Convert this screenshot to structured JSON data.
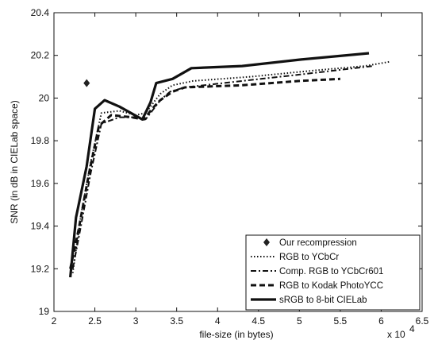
{
  "chart_data": {
    "type": "line",
    "title": "",
    "xlabel": "file-size (in bytes)",
    "ylabel": "SNR (in dB in CIELab space)",
    "x_multiplier_label": "x 10",
    "x_multiplier_exponent": "4",
    "xlim": [
      2,
      6.5
    ],
    "ylim": [
      19,
      20.4
    ],
    "xticks": [
      2,
      2.5,
      3,
      3.5,
      4,
      4.5,
      5,
      5.5,
      6,
      6.5
    ],
    "xtick_labels": [
      "2",
      "2.5",
      "3",
      "3.5",
      "4",
      "4.5",
      "5",
      "5.5",
      "6",
      "6.5"
    ],
    "yticks": [
      19,
      19.2,
      19.4,
      19.6,
      19.8,
      20,
      20.2,
      20.4
    ],
    "ytick_labels": [
      "19",
      "19.2",
      "19.4",
      "19.6",
      "19.8",
      "20",
      "20.2",
      "20.4"
    ],
    "grid": false,
    "legend_position": "bottom-right",
    "series": [
      {
        "name": "Our recompression",
        "style": "diamond-marker",
        "x": [
          2.4
        ],
        "y": [
          20.07
        ]
      },
      {
        "name": "RGB to YCbCr",
        "style": "dotted",
        "x": [
          2.23,
          2.33,
          2.45,
          2.58,
          2.8,
          3.0,
          3.12,
          3.2,
          3.3,
          3.45,
          3.7,
          4.4,
          5.2,
          5.8,
          6.1
        ],
        "y": [
          19.18,
          19.45,
          19.7,
          19.93,
          19.94,
          19.92,
          19.93,
          19.97,
          20.02,
          20.06,
          20.08,
          20.1,
          20.13,
          20.15,
          20.17
        ]
      },
      {
        "name": "Comp. RGB to YCbCr601",
        "style": "dash-dot",
        "x": [
          2.23,
          2.33,
          2.45,
          2.58,
          2.8,
          3.0,
          3.12,
          3.22,
          3.3,
          3.42,
          3.6,
          4.3,
          5.0,
          5.9
        ],
        "y": [
          19.2,
          19.4,
          19.65,
          19.88,
          19.91,
          19.91,
          19.9,
          19.95,
          19.99,
          20.03,
          20.05,
          20.08,
          20.11,
          20.15
        ]
      },
      {
        "name": "RGB to Kodak PhotoYCC",
        "style": "dashed",
        "x": [
          2.2,
          2.3,
          2.42,
          2.55,
          2.7,
          2.95,
          3.1,
          3.2,
          3.3,
          3.45,
          3.6,
          4.3,
          5.0,
          5.5
        ],
        "y": [
          19.2,
          19.38,
          19.63,
          19.87,
          19.92,
          19.91,
          19.9,
          19.95,
          19.99,
          20.03,
          20.05,
          20.06,
          20.08,
          20.09
        ]
      },
      {
        "name": "sRGB to 8-bit CIELab",
        "style": "solid-thick",
        "x": [
          2.2,
          2.27,
          2.4,
          2.5,
          2.62,
          2.8,
          3.08,
          3.18,
          3.25,
          3.35,
          3.45,
          3.68,
          4.3,
          5.0,
          5.85
        ],
        "y": [
          19.16,
          19.44,
          19.68,
          19.95,
          19.99,
          19.96,
          19.9,
          19.98,
          20.07,
          20.08,
          20.09,
          20.14,
          20.15,
          20.18,
          20.21
        ]
      }
    ]
  }
}
